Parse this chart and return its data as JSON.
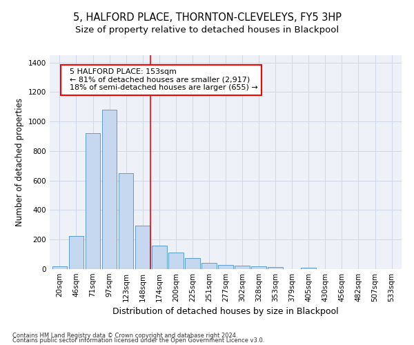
{
  "title": "5, HALFORD PLACE, THORNTON-CLEVELEYS, FY5 3HP",
  "subtitle": "Size of property relative to detached houses in Blackpool",
  "xlabel": "Distribution of detached houses by size in Blackpool",
  "ylabel": "Number of detached properties",
  "categories": [
    "20sqm",
    "46sqm",
    "71sqm",
    "97sqm",
    "123sqm",
    "148sqm",
    "174sqm",
    "200sqm",
    "225sqm",
    "251sqm",
    "277sqm",
    "302sqm",
    "328sqm",
    "353sqm",
    "379sqm",
    "405sqm",
    "430sqm",
    "456sqm",
    "482sqm",
    "507sqm",
    "533sqm"
  ],
  "values": [
    20,
    225,
    920,
    1080,
    650,
    295,
    160,
    110,
    75,
    40,
    30,
    25,
    20,
    15,
    0,
    10,
    0,
    0,
    0,
    0,
    0
  ],
  "bar_color": "#c5d8f0",
  "bar_edge_color": "#5b9bd5",
  "bar_edge_width": 0.7,
  "grid_color": "#d0d8e8",
  "bg_color": "#eef2f8",
  "annotation_line1": "  5 HALFORD PLACE: 153sqm",
  "annotation_line2": "  ← 81% of detached houses are smaller (2,917)",
  "annotation_line3": "  18% of semi-detached houses are larger (655) →",
  "red_line_x": 5.45,
  "ylim": [
    0,
    1450
  ],
  "yticks": [
    0,
    200,
    400,
    600,
    800,
    1000,
    1200,
    1400
  ],
  "footer1": "Contains HM Land Registry data © Crown copyright and database right 2024.",
  "footer2": "Contains public sector information licensed under the Open Government Licence v3.0.",
  "title_fontsize": 10.5,
  "subtitle_fontsize": 9.5,
  "xlabel_fontsize": 9,
  "ylabel_fontsize": 8.5,
  "tick_fontsize": 7.5,
  "annotation_fontsize": 8,
  "footer_fontsize": 6
}
